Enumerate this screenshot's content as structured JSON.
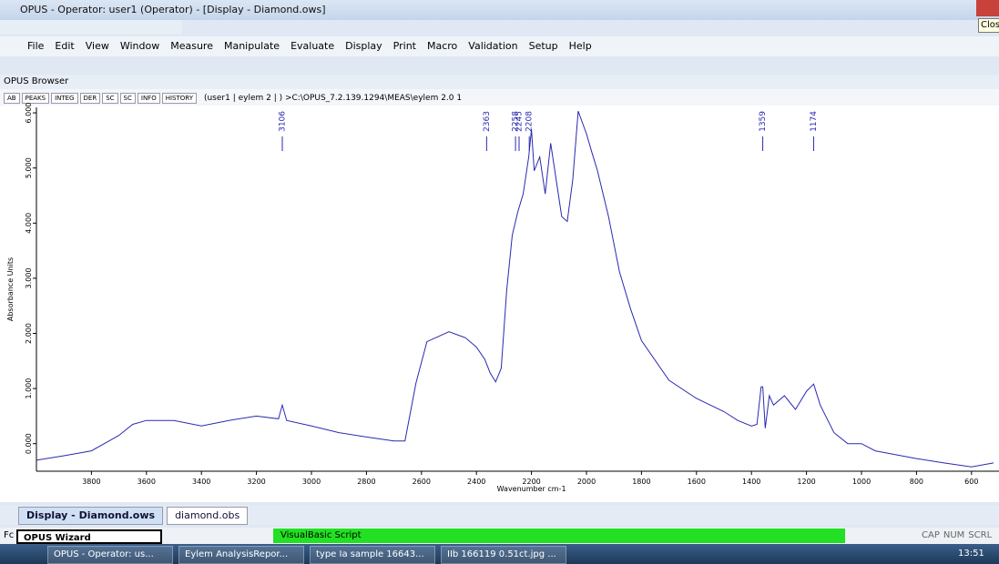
{
  "window": {
    "title": "OPUS - Operator: user1  (Operator) - [Display - Diamond.ows]",
    "tooltip": "Clos",
    "menu": [
      "File",
      "Edit",
      "View",
      "Window",
      "Measure",
      "Manipulate",
      "Evaluate",
      "Display",
      "Print",
      "Macro",
      "Validation",
      "Setup",
      "Help"
    ],
    "browser_label": "OPUS Browser",
    "toolbar_buttons": [
      "AB",
      "PEAKS",
      "INTEG",
      "DER",
      "SC",
      "SC",
      "INFO",
      "HISTORY"
    ],
    "path": "(user1 | eylem 2 | ) >C:\\OPUS_7.2.139.1294\\MEAS\\eylem 2.0  1",
    "tabs": [
      "Display - Diamond.ows",
      "diamond.obs"
    ],
    "status": {
      "left": "Fc",
      "wizard": "OPUS Wizard",
      "script": "VisualBasic Script",
      "keys": [
        "CAP",
        "NUM",
        "SCRL"
      ]
    },
    "taskbar": {
      "items": [
        "OPUS - Operator: us...",
        "Eylem AnalysisRepor...",
        "type Ia sample 16643...",
        "IIb 166119 0.51ct.jpg ..."
      ],
      "clock": "13:51"
    }
  },
  "chart_data": {
    "type": "line",
    "x_label": "Wavenumber cm-1",
    "y_label": "Absorbance Units",
    "color": "#2a2ab0",
    "x": [
      4000,
      3900,
      3800,
      3700,
      3650,
      3600,
      3500,
      3400,
      3300,
      3200,
      3120,
      3106,
      3090,
      3000,
      2900,
      2800,
      2700,
      2660,
      2620,
      2580,
      2500,
      2440,
      2400,
      2370,
      2350,
      2330,
      2310,
      2290,
      2270,
      2250,
      2230,
      2210,
      2200,
      2190,
      2170,
      2150,
      2130,
      2110,
      2090,
      2070,
      2050,
      2030,
      2000,
      1980,
      1960,
      1920,
      1880,
      1840,
      1800,
      1700,
      1600,
      1500,
      1450,
      1400,
      1380,
      1365,
      1359,
      1350,
      1335,
      1320,
      1280,
      1240,
      1200,
      1174,
      1150,
      1100,
      1050,
      1000,
      950,
      800,
      700,
      600,
      520
    ],
    "values": [
      -0.3,
      -0.22,
      -0.13,
      0.15,
      0.35,
      0.42,
      0.42,
      0.32,
      0.42,
      0.5,
      0.45,
      0.7,
      0.42,
      0.32,
      0.2,
      0.12,
      0.05,
      0.05,
      1.1,
      1.85,
      2.03,
      1.92,
      1.75,
      1.53,
      1.28,
      1.12,
      1.37,
      2.78,
      3.78,
      4.2,
      4.53,
      5.2,
      5.7,
      4.95,
      5.2,
      4.53,
      5.45,
      4.78,
      4.12,
      4.03,
      4.78,
      6.03,
      5.62,
      5.28,
      4.95,
      4.12,
      3.12,
      2.45,
      1.87,
      1.15,
      0.82,
      0.58,
      0.42,
      0.32,
      0.35,
      1.03,
      1.03,
      0.28,
      0.87,
      0.7,
      0.87,
      0.62,
      0.95,
      1.08,
      0.7,
      0.2,
      0.0,
      0.0,
      -0.13,
      -0.27,
      -0.35,
      -0.42,
      -0.35
    ],
    "peaks": [
      3106,
      2363,
      2258,
      2245,
      2208,
      1359,
      1174
    ],
    "xlim": [
      4000,
      500
    ],
    "ylim": [
      -0.5,
      6.1
    ],
    "xticks": [
      3800,
      3600,
      3400,
      3200,
      3000,
      2800,
      2600,
      2400,
      2200,
      2000,
      1800,
      1600,
      1400,
      1200,
      1000,
      800,
      600
    ],
    "yticks": [
      {
        "value": 0,
        "label": "0.000"
      },
      {
        "value": 1,
        "label": "1.000"
      },
      {
        "value": 2,
        "label": "2.000"
      },
      {
        "value": 3,
        "label": "3.000"
      },
      {
        "value": 4,
        "label": "4.000"
      },
      {
        "value": 5,
        "label": "5.000"
      },
      {
        "value": 6,
        "label": "6.000"
      }
    ]
  }
}
